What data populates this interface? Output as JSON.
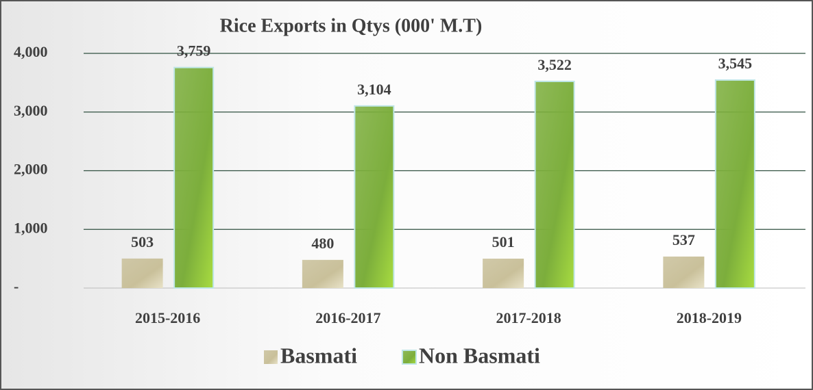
{
  "chart_data": {
    "type": "bar",
    "title": "Rice Exports in Qtys (000' M.T)",
    "categories": [
      "2015-2016",
      "2016-2017",
      "2017-2018",
      "2018-2019"
    ],
    "series": [
      {
        "name": "Basmati",
        "color": "#c9c09a",
        "values": [
          503,
          480,
          501,
          537
        ],
        "value_labels": [
          "503",
          "480",
          "501",
          "537"
        ]
      },
      {
        "name": "Non Basmati",
        "color": "#7cae3c",
        "values": [
          3759,
          3104,
          3522,
          3545
        ],
        "value_labels": [
          "3,759",
          "3,104",
          "3,522",
          "3,545"
        ]
      }
    ],
    "ylim": [
      0,
      4000
    ],
    "yticks": [
      {
        "value": 0,
        "label": "-"
      },
      {
        "value": 1000,
        "label": "1,000"
      },
      {
        "value": 2000,
        "label": "2,000"
      },
      {
        "value": 3000,
        "label": "3,000"
      },
      {
        "value": 4000,
        "label": "4,000"
      }
    ],
    "grid": true,
    "legend": "bottom"
  }
}
